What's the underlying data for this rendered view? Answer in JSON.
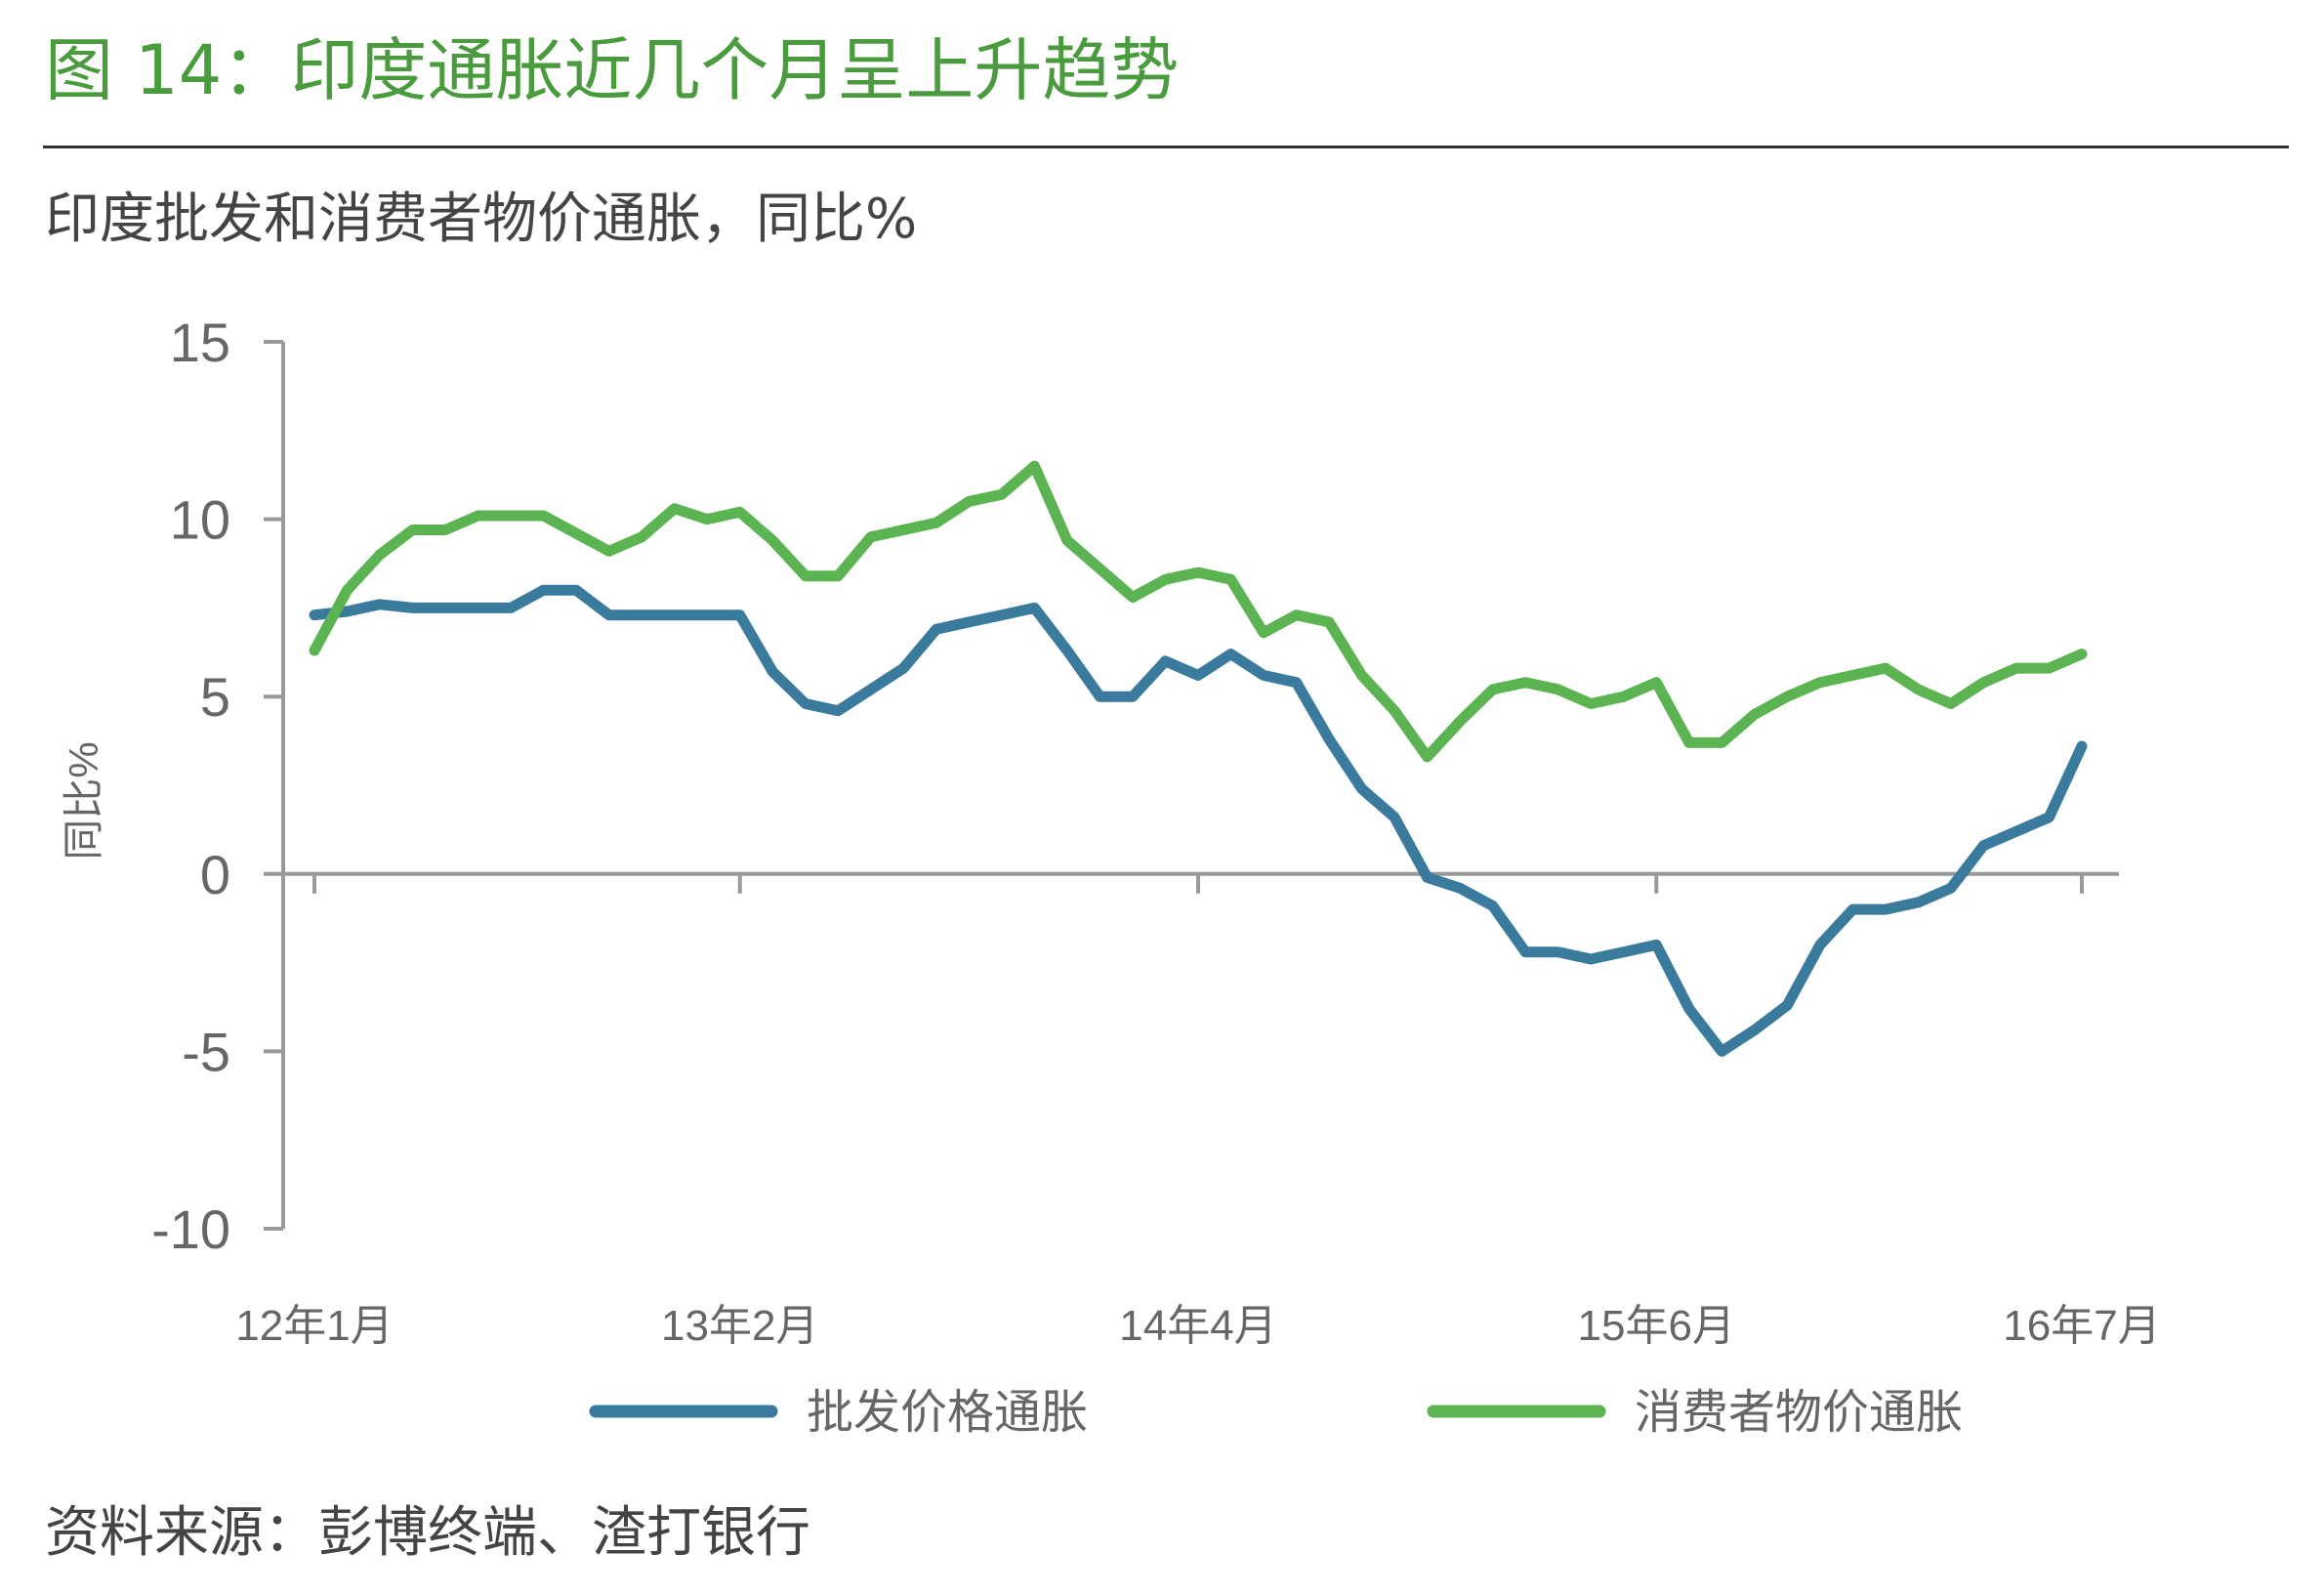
{
  "figure": {
    "title": "图 14：印度通胀近几个月呈上升趋势",
    "subtitle": "印度批发和消费者物价通胀，同比%",
    "source": "资料来源：彭博终端、渣打银行"
  },
  "colors": {
    "title_green": "#4a9a3e",
    "wpi_line": "#3a7a9c",
    "cpi_line": "#5cb352",
    "axis": "#999999",
    "rule": "#333333"
  },
  "chart_data": {
    "type": "line",
    "ylabel": "同比%",
    "xlabel": "",
    "ylim": [
      -10,
      15
    ],
    "yticks": [
      15,
      10,
      5,
      0,
      -5,
      -10
    ],
    "xlim": [
      0,
      54
    ],
    "xticks": [
      {
        "x": 0,
        "label": "12年1月"
      },
      {
        "x": 13,
        "label": "13年2月"
      },
      {
        "x": 27,
        "label": "14年4月"
      },
      {
        "x": 41,
        "label": "15年6月"
      },
      {
        "x": 54,
        "label": "16年7月"
      }
    ],
    "legend_position": "bottom",
    "grid": false,
    "series": [
      {
        "name": "批发价格通胀",
        "color": "#3a7a9c",
        "values": [
          7.3,
          7.4,
          7.6,
          7.5,
          7.5,
          7.5,
          7.5,
          8.0,
          8.0,
          7.3,
          7.3,
          7.3,
          7.3,
          7.3,
          5.7,
          4.8,
          4.6,
          5.2,
          5.8,
          6.9,
          7.1,
          7.3,
          7.5,
          6.3,
          5.0,
          5.0,
          6.0,
          5.6,
          6.2,
          5.6,
          5.4,
          3.8,
          2.4,
          1.6,
          -0.1,
          -0.4,
          -0.9,
          -2.2,
          -2.2,
          -2.4,
          -2.2,
          -2.0,
          -3.8,
          -5.0,
          -4.4,
          -3.7,
          -2.0,
          -1.0,
          -1.0,
          -0.8,
          -0.4,
          0.8,
          1.2,
          1.6,
          3.6
        ]
      },
      {
        "name": "消费者物价通胀",
        "color": "#5cb352",
        "values": [
          6.3,
          8.0,
          9.0,
          9.7,
          9.7,
          10.1,
          10.1,
          10.1,
          9.6,
          9.1,
          9.5,
          10.3,
          10.0,
          10.2,
          9.4,
          8.4,
          8.4,
          9.5,
          9.7,
          9.9,
          10.5,
          10.7,
          11.5,
          9.4,
          8.6,
          7.8,
          8.3,
          8.5,
          8.3,
          6.8,
          7.3,
          7.1,
          5.6,
          4.6,
          3.3,
          4.3,
          5.2,
          5.4,
          5.2,
          4.8,
          5.0,
          5.4,
          3.7,
          3.7,
          4.5,
          5.0,
          5.4,
          5.6,
          5.8,
          5.2,
          4.8,
          5.4,
          5.8,
          5.8,
          6.2
        ]
      }
    ]
  }
}
